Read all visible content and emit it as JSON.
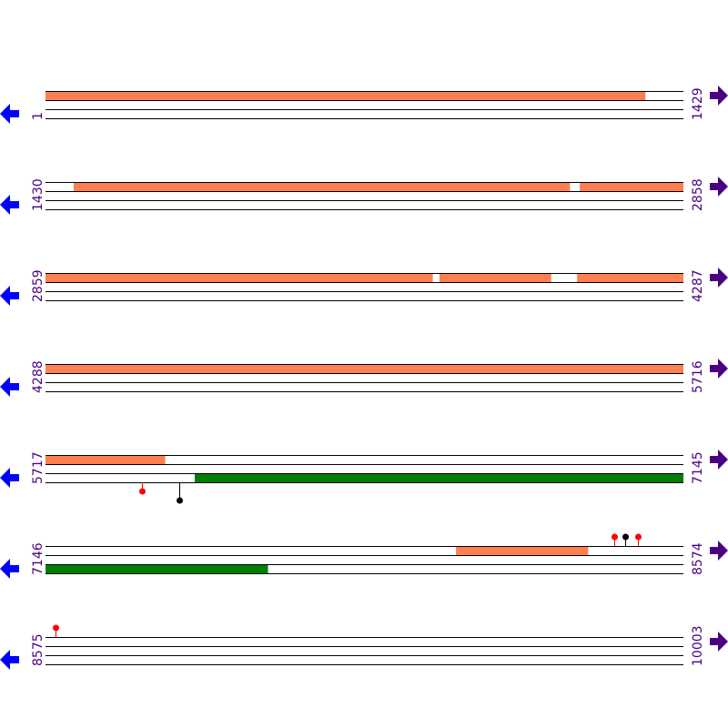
{
  "chart_data": {
    "type": "sequence-map",
    "bp_per_row": 1429,
    "rows": [
      {
        "start_label": "1",
        "end_label": "1429",
        "start": 1,
        "end": 1429
      },
      {
        "start_label": "1430",
        "end_label": "2858",
        "start": 1430,
        "end": 2858
      },
      {
        "start_label": "2859",
        "end_label": "4287",
        "start": 2859,
        "end": 4287
      },
      {
        "start_label": "4288",
        "end_label": "5716",
        "start": 4288,
        "end": 5716
      },
      {
        "start_label": "5717",
        "end_label": "7145",
        "start": 5717,
        "end": 7145
      },
      {
        "start_label": "7146",
        "end_label": "8574",
        "start": 7146,
        "end": 8574
      },
      {
        "start_label": "8575",
        "end_label": "10003",
        "start": 8575,
        "end": 10003
      }
    ],
    "features": [
      {
        "strand": "forward",
        "start": 1,
        "end": 1343,
        "color": "#ff7f50"
      },
      {
        "strand": "forward",
        "start": 1493,
        "end": 2603,
        "color": "#ff7f50"
      },
      {
        "strand": "forward",
        "start": 2626,
        "end": 3725,
        "color": "#ff7f50"
      },
      {
        "strand": "forward",
        "start": 3741,
        "end": 3990,
        "color": "#ff7f50"
      },
      {
        "strand": "forward",
        "start": 4049,
        "end": 5984,
        "color": "#ff7f50"
      },
      {
        "strand": "reverse",
        "start": 6051,
        "end": 7643,
        "color": "#008000"
      },
      {
        "strand": "forward",
        "start": 8065,
        "end": 8360,
        "color": "#ff7f50"
      }
    ],
    "markers": [
      {
        "strand": "reverse",
        "pos": 5933,
        "color": "#ff0000"
      },
      {
        "strand": "reverse",
        "pos": 6016,
        "color": "#000000"
      },
      {
        "strand": "forward",
        "pos": 8419,
        "color": "#ff0000"
      },
      {
        "strand": "forward",
        "pos": 8444,
        "color": "#000000"
      },
      {
        "strand": "forward",
        "pos": 8472,
        "color": "#ff0000"
      },
      {
        "strand": "forward",
        "pos": 8597,
        "color": "#ff0000"
      }
    ],
    "colors": {
      "reverse_arrow": "#0000ff",
      "forward_arrow": "#4b0082",
      "label": "#4b0082"
    }
  }
}
